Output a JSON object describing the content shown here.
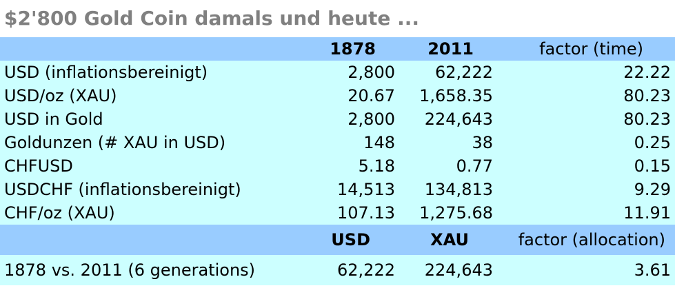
{
  "title": "$2'800 Gold Coin damals und heute ...",
  "header1": {
    "col_a": "1878",
    "col_b": "2011",
    "col_f": "factor (time)"
  },
  "rows": [
    {
      "label": "USD (inflationsbereinigt)",
      "a": "2,800",
      "b": "62,222",
      "f": "22.22"
    },
    {
      "label": "USD/oz (XAU)",
      "a": "20.67",
      "b": "1,658.35",
      "f": "80.23"
    },
    {
      "label": "USD in Gold",
      "a": "2,800",
      "b": "224,643",
      "f": "80.23"
    },
    {
      "label": "Goldunzen (# XAU in USD)",
      "a": "148",
      "b": "38",
      "f": "0.25"
    },
    {
      "label": "CHFUSD",
      "a": "5.18",
      "b": "0.77",
      "f": "0.15"
    },
    {
      "label": "USDCHF (inflationsbereinigt)",
      "a": "14,513",
      "b": "134,813",
      "f": "9.29"
    },
    {
      "label": "CHF/oz (XAU)",
      "a": "107.13",
      "b": "1,275.68",
      "f": "11.91"
    }
  ],
  "header2": {
    "col_a": "USD",
    "col_b": "XAU",
    "col_f": "factor (allocation)"
  },
  "summary": {
    "label": "1878 vs. 2011 (6 generations)",
    "a": "62,222",
    "b": "224,643",
    "f": "3.61"
  },
  "colors": {
    "header_bg": "#99ccff",
    "body_bg": "#ccffff",
    "title": "#808080"
  }
}
